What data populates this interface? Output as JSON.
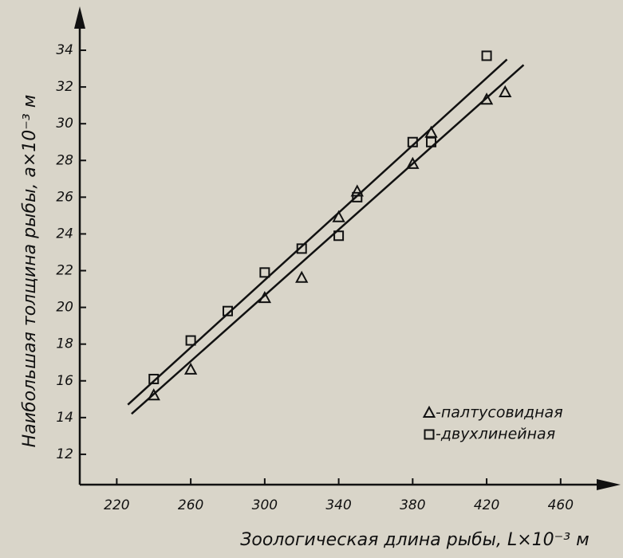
{
  "chart_data": {
    "type": "scatter",
    "x_label": "Зоологическая длина рыбы, L×10⁻³ м",
    "y_label": "Наибольшая толщина рыбы, a×10⁻³ м",
    "xlim": [
      200,
      470
    ],
    "ylim": [
      10,
      35
    ],
    "xticks": [
      220,
      260,
      300,
      340,
      380,
      420,
      460
    ],
    "yticks": [
      12,
      14,
      16,
      18,
      20,
      22,
      24,
      26,
      28,
      30,
      32,
      34
    ],
    "legend": "lower right",
    "series": [
      {
        "name": "-палтусовидная",
        "marker": "triangle",
        "color": "#111111",
        "x": [
          240,
          260,
          300,
          320,
          340,
          350,
          380,
          390,
          420,
          430
        ],
        "values": [
          15.2,
          16.6,
          20.5,
          21.6,
          24.9,
          26.3,
          27.8,
          29.5,
          31.3,
          31.7
        ],
        "fit_x": [
          228,
          440
        ],
        "fit_y": [
          14.2,
          33.2
        ]
      },
      {
        "name": "-двухлинейная",
        "marker": "square",
        "color": "#111111",
        "x": [
          240,
          260,
          280,
          300,
          320,
          340,
          350,
          380,
          390,
          420
        ],
        "values": [
          16.1,
          18.2,
          19.8,
          21.9,
          23.2,
          23.9,
          26.0,
          29.0,
          29.0,
          33.7
        ],
        "fit_x": [
          226,
          431
        ],
        "fit_y": [
          14.7,
          33.5
        ]
      }
    ]
  }
}
